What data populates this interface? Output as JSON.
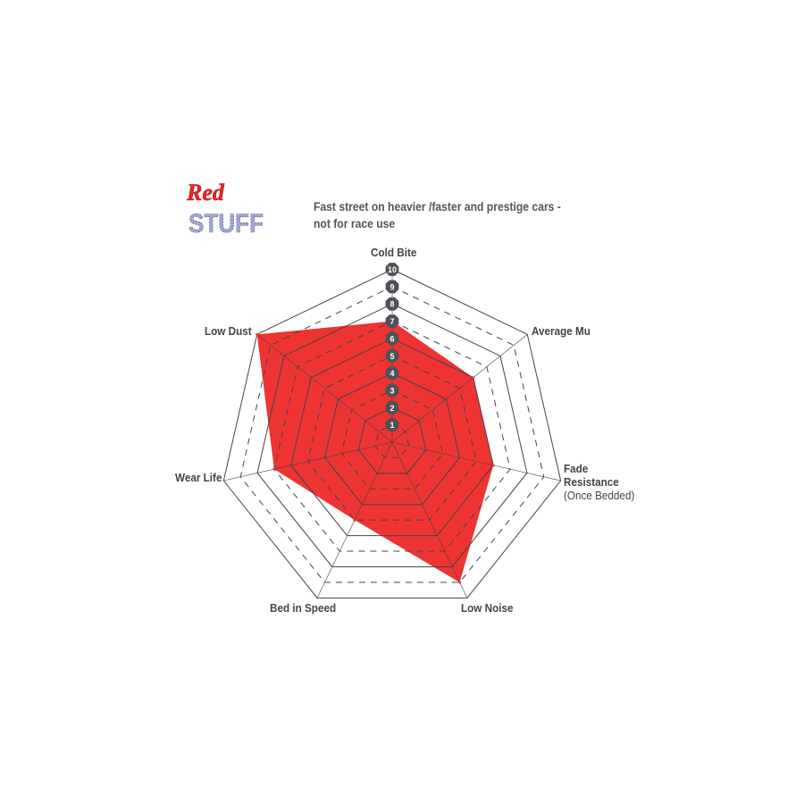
{
  "logo": {
    "text_top": "Red",
    "text_bottom": "STUFF",
    "colors": {
      "red": "#e8242b",
      "blue": "#9ea4d8"
    }
  },
  "subtitle_line1": "Fast street on heavier /faster and prestige cars -",
  "subtitle_line2": "not for race use",
  "chart_data": {
    "type": "radar",
    "axes": [
      {
        "label": "Cold Bite",
        "sub": "",
        "value": 7
      },
      {
        "label": "Average Mu",
        "sub": "",
        "value": 6
      },
      {
        "label": "Fade Resistance",
        "sub": "(Once Bedded)",
        "value": 6
      },
      {
        "label": "Low Noise",
        "sub": "",
        "value": 9
      },
      {
        "label": "Bed in Speed",
        "sub": "",
        "value": 5
      },
      {
        "label": "Wear Life",
        "sub": "",
        "value": 7
      },
      {
        "label": "Low Dust",
        "sub": "",
        "value": 10
      }
    ],
    "scale_ticks": [
      "1",
      "2",
      "3",
      "4",
      "5",
      "6",
      "7",
      "8",
      "9",
      "10"
    ],
    "range": [
      0,
      10
    ],
    "fill_color": "#ee3333",
    "grid_color": "#444444"
  }
}
